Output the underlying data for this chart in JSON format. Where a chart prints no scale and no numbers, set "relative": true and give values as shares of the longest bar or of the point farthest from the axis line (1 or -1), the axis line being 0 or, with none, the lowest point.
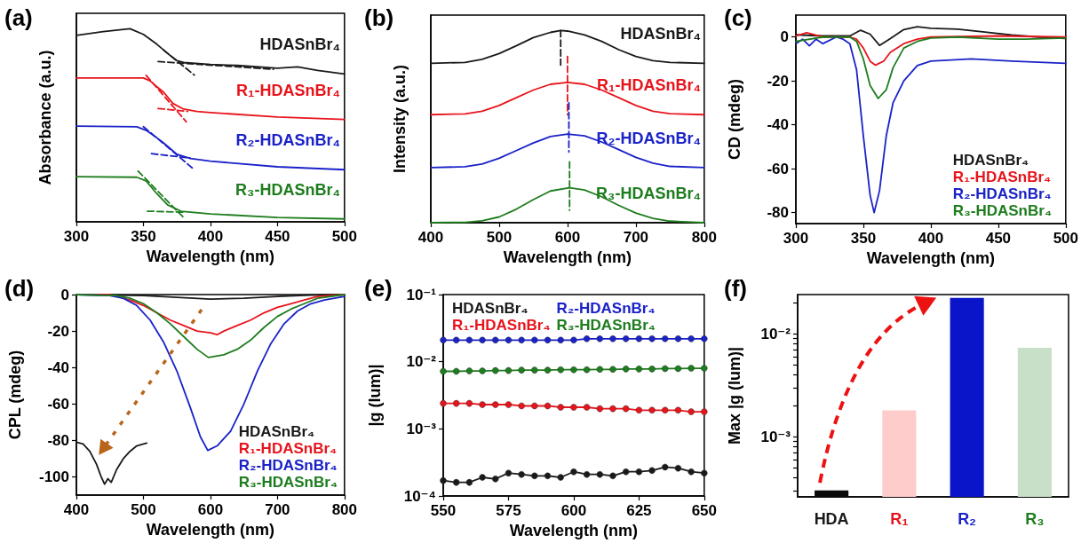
{
  "chart_data": [
    {
      "type": "line",
      "title": "(a)",
      "xlabel": "Wavelength (nm)",
      "ylabel": "Absorbance (a.u.)",
      "relative": true,
      "xlim": [
        300,
        500
      ],
      "xticks": [
        300,
        350,
        400,
        450,
        500
      ],
      "series": [
        {
          "name": "HDASnBr₄",
          "color": "#1a1a1a",
          "x": [
            300,
            320,
            340,
            350,
            360,
            370,
            375,
            380,
            400,
            420,
            450,
            465,
            480,
            500
          ],
          "values": [
            0.966,
            0.985,
            1.0,
            0.971,
            0.92,
            0.861,
            0.835,
            0.825,
            0.815,
            0.81,
            0.796,
            0.803,
            0.784,
            0.766
          ]
        },
        {
          "name": "R₁-HDASnBr₄",
          "color": "#e8141c",
          "x": [
            300,
            350,
            355,
            360,
            365,
            372,
            380,
            390,
            400,
            450,
            500
          ],
          "values": [
            0.745,
            0.745,
            0.73,
            0.7,
            0.672,
            0.613,
            0.584,
            0.572,
            0.566,
            0.543,
            0.53
          ]
        },
        {
          "name": "R₂-HDASnBr₄",
          "color": "#1a22c8",
          "x": [
            300,
            345,
            352,
            360,
            365,
            375,
            385,
            400,
            450,
            500
          ],
          "values": [
            0.496,
            0.492,
            0.474,
            0.435,
            0.409,
            0.35,
            0.328,
            0.314,
            0.285,
            0.27
          ]
        },
        {
          "name": "R₃-HDASnBr₄",
          "color": "#1e7d1e",
          "x": [
            300,
            345,
            352,
            360,
            368,
            378,
            400,
            450,
            500
          ],
          "values": [
            0.234,
            0.231,
            0.212,
            0.146,
            0.088,
            0.055,
            0.041,
            0.022,
            0.015
          ]
        },
        {
          "color": "#1a1a1a",
          "line_style": "dashed",
          "x": [
            365,
            388
          ],
          "values": [
            0.89,
            0.76
          ]
        },
        {
          "color": "#1a1a1a",
          "line_style": "dashed",
          "x": [
            361,
            447
          ],
          "values": [
            0.83,
            0.79
          ]
        },
        {
          "color": "#e8141c",
          "line_style": "dashed",
          "x": [
            352,
            382
          ],
          "values": [
            0.759,
            0.518
          ]
        },
        {
          "color": "#e8141c",
          "line_style": "dashed",
          "x": [
            361,
            383
          ],
          "values": [
            0.587,
            0.572
          ]
        },
        {
          "color": "#1a22c8",
          "line_style": "dashed",
          "x": [
            350,
            388
          ],
          "values": [
            0.493,
            0.27
          ]
        },
        {
          "color": "#1a22c8",
          "line_style": "dashed",
          "x": [
            356,
            385
          ],
          "values": [
            0.353,
            0.33
          ]
        },
        {
          "color": "#1e7d1e",
          "line_style": "dashed",
          "x": [
            346,
            380
          ],
          "values": [
            0.263,
            0.022
          ]
        },
        {
          "color": "#1e7d1e",
          "line_style": "dashed",
          "x": [
            353,
            380
          ],
          "values": [
            0.055,
            0.05
          ]
        }
      ]
    },
    {
      "type": "line",
      "title": "(b)",
      "xlabel": "Wavelength (nm)",
      "ylabel": "Intensity (a.u.)",
      "relative": true,
      "xlim": [
        400,
        800
      ],
      "xticks": [
        400,
        500,
        600,
        700,
        800
      ],
      "series": [
        {
          "name": "HDASnBr₄",
          "color": "#1a1a1a",
          "x": [
            400,
            450,
            475,
            500,
            525,
            550,
            575,
            590,
            600,
            625,
            650,
            675,
            700,
            725,
            750,
            800
          ],
          "values": [
            0.829,
            0.834,
            0.85,
            0.88,
            0.92,
            0.963,
            0.99,
            1.0,
            0.997,
            0.977,
            0.943,
            0.9,
            0.865,
            0.843,
            0.834,
            0.829
          ]
        },
        {
          "name": "R₁-HDASnBr₄",
          "color": "#e8141c",
          "x": [
            400,
            450,
            475,
            500,
            525,
            550,
            575,
            600,
            625,
            650,
            675,
            700,
            725,
            750,
            800
          ],
          "values": [
            0.562,
            0.566,
            0.58,
            0.61,
            0.65,
            0.69,
            0.72,
            0.73,
            0.72,
            0.69,
            0.65,
            0.61,
            0.58,
            0.567,
            0.562
          ]
        },
        {
          "name": "R₂-HDASnBr₄",
          "color": "#1a22c8",
          "x": [
            400,
            450,
            475,
            500,
            525,
            550,
            575,
            600,
            625,
            650,
            675,
            700,
            725,
            750,
            800
          ],
          "values": [
            0.287,
            0.291,
            0.305,
            0.335,
            0.375,
            0.415,
            0.448,
            0.461,
            0.452,
            0.42,
            0.38,
            0.34,
            0.31,
            0.293,
            0.287
          ]
        },
        {
          "name": "R₃-HDASnBr₄",
          "color": "#1e7d1e",
          "x": [
            400,
            450,
            475,
            500,
            525,
            550,
            575,
            603,
            625,
            650,
            675,
            700,
            725,
            750,
            800
          ],
          "values": [
            0,
            0.002,
            0.01,
            0.03,
            0.07,
            0.12,
            0.165,
            0.182,
            0.17,
            0.135,
            0.09,
            0.05,
            0.022,
            0.008,
            0
          ]
        },
        {
          "color": "#1a1a1a",
          "line_style": "dashed",
          "x": [
            590,
            590
          ],
          "values": [
            1.0,
            0.82
          ]
        },
        {
          "color": "#e8141c",
          "line_style": "dashed",
          "x": [
            600,
            600
          ],
          "values": [
            0.865,
            0.562
          ]
        },
        {
          "color": "#1a22c8",
          "line_style": "dashed",
          "x": [
            602,
            602
          ],
          "values": [
            0.624,
            0.368
          ]
        },
        {
          "color": "#1e7d1e",
          "line_style": "dashed",
          "x": [
            603,
            603
          ],
          "values": [
            0.317,
            0.065
          ]
        }
      ]
    },
    {
      "type": "line",
      "title": "(c)",
      "xlabel": "Wavelength (nm)",
      "ylabel": "CD (mdeg)",
      "xlim": [
        300,
        500
      ],
      "xticks": [
        300,
        350,
        400,
        450,
        500
      ],
      "ylim": [
        -85,
        10
      ],
      "yticks": [
        -80,
        -60,
        -40,
        -20,
        0
      ],
      "legend": "bottom right",
      "series": [
        {
          "name": "HDASnBr₄",
          "color": "#1a1a1a",
          "x": [
            300,
            320,
            340,
            348,
            355,
            362,
            370,
            380,
            390,
            400,
            420,
            440,
            460,
            480,
            500
          ],
          "values": [
            1,
            0.5,
            0.5,
            3.1,
            1.3,
            -3.8,
            -0.7,
            3.4,
            4.7,
            4,
            3.6,
            2.3,
            0.9,
            0,
            -0.7
          ]
        },
        {
          "name": "R₁-HDASnBr₄",
          "color": "#e8141c",
          "x": [
            300,
            308,
            320,
            340,
            345,
            350,
            355,
            359,
            365,
            370,
            380,
            390,
            400,
            450,
            500
          ],
          "values": [
            0.5,
            2,
            0,
            0,
            -1,
            -5,
            -11,
            -12.8,
            -11,
            -7,
            -3,
            -1,
            0,
            0.5,
            0
          ]
        },
        {
          "name": "R₂-HDASnBr₄",
          "color": "#1a22c8",
          "x": [
            300,
            305,
            310,
            315,
            320,
            330,
            335,
            340,
            345,
            350,
            355,
            358,
            362,
            367,
            372,
            380,
            390,
            400,
            430,
            460,
            500
          ],
          "values": [
            -3,
            -1,
            -4,
            -1,
            -3,
            0,
            -1,
            -3,
            -15,
            -45,
            -72,
            -80,
            -70,
            -45,
            -30,
            -20,
            -13,
            -11,
            -10,
            -11,
            -12
          ]
        },
        {
          "name": "R₃-HDASnBr₄",
          "color": "#1e7d1e",
          "x": [
            300,
            320,
            340,
            345,
            350,
            355,
            361,
            367,
            372,
            380,
            390,
            400,
            420,
            450,
            470,
            500
          ],
          "values": [
            -2,
            0,
            0,
            -2,
            -10,
            -22,
            -28,
            -24,
            -14,
            -5,
            -2,
            -0.5,
            0,
            -1,
            -1,
            -0.5
          ]
        }
      ]
    },
    {
      "type": "line",
      "title": "(d)",
      "xlabel": "Wavelength (nm)",
      "ylabel": "CPL (mdeg)",
      "xlim": [
        400,
        800
      ],
      "xticks": [
        400,
        500,
        600,
        700,
        800
      ],
      "ylim": [
        -110,
        0
      ],
      "yticks": [
        -100,
        -80,
        -60,
        -40,
        -20,
        0
      ],
      "legend": "bottom right",
      "series": [
        {
          "name": "HDASnBr₄",
          "color": "#1a1a1a",
          "x": [
            400,
            500,
            550,
            600,
            650,
            700,
            750,
            800
          ],
          "values": [
            0,
            -0.5,
            -1.5,
            -2.5,
            -2,
            -1,
            -0.3,
            0
          ]
        },
        {
          "name": "R₁-HDASnBr₄",
          "color": "#e8141c",
          "x": [
            400,
            450,
            480,
            500,
            520,
            540,
            560,
            580,
            600,
            610,
            620,
            640,
            660,
            680,
            700,
            720,
            740,
            760,
            800
          ],
          "values": [
            0,
            0,
            -3,
            -6,
            -10,
            -14,
            -17,
            -20,
            -21,
            -22,
            -20,
            -17,
            -14,
            -10,
            -7,
            -5,
            -3,
            -1,
            0
          ]
        },
        {
          "name": "R₂-HDASnBr₄",
          "color": "#1a22c8",
          "x": [
            400,
            450,
            470,
            490,
            510,
            530,
            550,
            570,
            585,
            596,
            610,
            630,
            650,
            670,
            690,
            710,
            730,
            750,
            770,
            800
          ],
          "values": [
            0,
            -0.5,
            -2,
            -6,
            -14,
            -26,
            -42,
            -62,
            -78,
            -85.5,
            -83,
            -75,
            -60,
            -42,
            -27,
            -16,
            -9,
            -5,
            -3,
            -1
          ]
        },
        {
          "name": "R₃-HDASnBr₄",
          "color": "#1e7d1e",
          "x": [
            400,
            460,
            480,
            500,
            520,
            540,
            560,
            580,
            597,
            620,
            640,
            660,
            680,
            700,
            720,
            740,
            760,
            800
          ],
          "values": [
            0,
            -0.5,
            -2,
            -5,
            -10,
            -16,
            -23,
            -30,
            -34.5,
            -33,
            -30,
            -25,
            -18,
            -12,
            -8,
            -5,
            -2,
            0
          ]
        },
        {
          "color": "#1a1a1a",
          "x": [
            400,
            410,
            420,
            430,
            437,
            442,
            447,
            452,
            460,
            470,
            480,
            490,
            500,
            505
          ],
          "values": [
            -81,
            -82,
            -86,
            -93,
            -100,
            -104,
            -101,
            -103,
            -96,
            -90,
            -86,
            -83,
            -82,
            -81.5
          ]
        }
      ]
    },
    {
      "type": "line",
      "title": "(e)",
      "xlabel": "Wavelength (nm)",
      "ylabel": "|g (lum)|",
      "log": "y",
      "marker": "circle",
      "xlim": [
        550,
        650
      ],
      "xticks": [
        550,
        575,
        600,
        625,
        650
      ],
      "ylim": [
        0.0001,
        0.1
      ],
      "yticks": [
        {
          "value": 0.0001,
          "label": "10⁻⁴"
        },
        {
          "value": 0.001,
          "label": "10⁻³"
        },
        {
          "value": 0.01,
          "label": "10⁻²"
        },
        {
          "value": 0.1,
          "label": "10⁻¹"
        }
      ],
      "legend": "top",
      "x": [
        550,
        555,
        560,
        565,
        570,
        575,
        580,
        585,
        590,
        595,
        600,
        605,
        610,
        615,
        620,
        625,
        630,
        635,
        640,
        645,
        650
      ],
      "series": [
        {
          "name": "HDASnBr₄",
          "color": "#1a1a1a",
          "values": [
            0.00017,
            0.00016,
            0.00016,
            0.00019,
            0.00018,
            0.00022,
            0.00021,
            0.0002,
            0.0002,
            0.00019,
            0.00023,
            0.00021,
            0.00021,
            0.0002,
            0.00023,
            0.00023,
            0.00024,
            0.00027,
            0.00026,
            0.00023,
            0.00022
          ]
        },
        {
          "name": "R₁-HDASnBr₄",
          "color": "#e8141c",
          "values": [
            0.0024,
            0.0024,
            0.0024,
            0.0023,
            0.0023,
            0.0023,
            0.0022,
            0.0022,
            0.0022,
            0.0021,
            0.0021,
            0.0021,
            0.002,
            0.002,
            0.002,
            0.0019,
            0.0019,
            0.0019,
            0.0019,
            0.0018,
            0.0018
          ]
        },
        {
          "name": "R₂-HDASnBr₄",
          "color": "#1a22c8",
          "values": [
            0.021,
            0.021,
            0.021,
            0.021,
            0.021,
            0.021,
            0.021,
            0.021,
            0.021,
            0.021,
            0.021,
            0.022,
            0.022,
            0.022,
            0.022,
            0.022,
            0.022,
            0.022,
            0.022,
            0.022,
            0.022
          ]
        },
        {
          "name": "R₃-HDASnBr₄",
          "color": "#1e7d1e",
          "values": [
            0.0072,
            0.0072,
            0.0073,
            0.0073,
            0.0074,
            0.0074,
            0.0075,
            0.0075,
            0.0075,
            0.0076,
            0.0076,
            0.0076,
            0.0077,
            0.0077,
            0.0078,
            0.0078,
            0.0078,
            0.0079,
            0.0079,
            0.008,
            0.008
          ]
        }
      ]
    },
    {
      "type": "bar",
      "title": "(f)",
      "ylabel": "Max |g (lum)|",
      "log": "y",
      "categories": [
        "HDA",
        "R₁",
        "R₂",
        "R₃"
      ],
      "values": [
        0.0003,
        0.0018,
        0.0223,
        0.0073
      ],
      "colors": [
        "#0a0a0a",
        "#ffcccc",
        "#0a14c8",
        "#c8e0c8"
      ],
      "ylim": [
        0.00026,
        0.024
      ],
      "yticks": [
        {
          "value": 0.0003,
          "label": null
        },
        {
          "value": 0.0004,
          "label": null
        },
        {
          "value": 0.0005,
          "label": null
        },
        {
          "value": 0.0006,
          "label": null
        },
        {
          "value": 0.0007,
          "label": null
        },
        {
          "value": 0.0008,
          "label": null
        },
        {
          "value": 0.0009,
          "label": null
        },
        {
          "value": 0.001,
          "label": "10⁻³"
        },
        {
          "value": 0.002,
          "label": null
        },
        {
          "value": 0.003,
          "label": null
        },
        {
          "value": 0.004,
          "label": null
        },
        {
          "value": 0.005,
          "label": null
        },
        {
          "value": 0.006,
          "label": null
        },
        {
          "value": 0.007,
          "label": null
        },
        {
          "value": 0.008,
          "label": null
        },
        {
          "value": 0.009,
          "label": null
        },
        {
          "value": 0.01,
          "label": "10⁻²"
        },
        {
          "value": 0.02,
          "label": null
        }
      ]
    }
  ]
}
